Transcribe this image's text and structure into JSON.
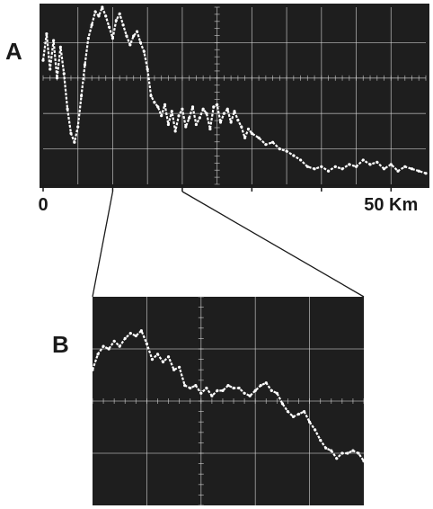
{
  "panels": {
    "a_label": "A",
    "b_label": "B"
  },
  "colors": {
    "screen": "#1e1e1e",
    "grid": "#d8d8d8",
    "trace": "#ffffff",
    "ink": "#1a1a1a",
    "paper": "#ffffff"
  },
  "chart_data": [
    {
      "type": "line",
      "title": "",
      "xlabel": "",
      "ylabel": "",
      "xlim": [
        0,
        55
      ],
      "ylim": [
        0,
        8
      ],
      "x_tick_values": [
        0,
        10,
        20,
        30,
        40,
        50
      ],
      "x_tick_labels": [
        "0",
        "",
        "",
        "",
        "",
        "50 Km"
      ],
      "grid": true,
      "series": [
        {
          "x": [
            0,
            0.5,
            1,
            1.5,
            2,
            2.5,
            3,
            3.5,
            4,
            4.5,
            5,
            5.5,
            6,
            6.5,
            7,
            7.5,
            8,
            8.5,
            9,
            9.5,
            10,
            10.5,
            11,
            11.5,
            12,
            12.5,
            13,
            13.5,
            14,
            14.5,
            15,
            15.5,
            16,
            16.5,
            17,
            17.5,
            18,
            18.5,
            19,
            19.5,
            20,
            20.5,
            21,
            21.5,
            22,
            22.5,
            23,
            23.5,
            24,
            24.5,
            25,
            25.5,
            26,
            26.5,
            27,
            27.5,
            28,
            28.5,
            29,
            29.5,
            30,
            31,
            32,
            33,
            34,
            35,
            36,
            37,
            38,
            39,
            40,
            41,
            42,
            43,
            44,
            45,
            46,
            47,
            48,
            49,
            50,
            51,
            52,
            53,
            54,
            55
          ],
          "y": [
            5.6,
            6.8,
            5.2,
            6.5,
            4.8,
            6.2,
            5.0,
            3.4,
            2.3,
            1.9,
            2.6,
            4.0,
            5.4,
            6.6,
            7.2,
            7.8,
            7.6,
            8.0,
            7.6,
            7.1,
            6.6,
            7.4,
            7.7,
            7.2,
            6.7,
            6.3,
            6.7,
            6.9,
            6.4,
            6.0,
            5.2,
            4.0,
            3.7,
            3.5,
            3.1,
            3.6,
            2.7,
            3.3,
            2.4,
            3.1,
            3.4,
            2.6,
            3.0,
            3.5,
            2.7,
            3.0,
            3.4,
            3.2,
            2.5,
            3.5,
            3.6,
            2.8,
            3.2,
            3.4,
            2.8,
            3.3,
            2.9,
            2.6,
            2.1,
            2.5,
            2.3,
            2.1,
            1.8,
            1.9,
            1.6,
            1.5,
            1.3,
            1.1,
            0.8,
            0.7,
            0.8,
            0.6,
            0.8,
            0.7,
            0.9,
            0.8,
            1.1,
            0.9,
            1.0,
            0.7,
            0.9,
            0.6,
            0.8,
            0.7,
            0.6,
            0.5
          ]
        }
      ]
    },
    {
      "type": "line",
      "title": "",
      "xlabel": "",
      "ylabel": "",
      "xlim": [
        10,
        20
      ],
      "ylim": [
        0,
        8
      ],
      "grid": true,
      "series": [
        {
          "x": [
            10,
            10.2,
            10.4,
            10.6,
            10.8,
            11.0,
            11.2,
            11.4,
            11.6,
            11.8,
            12.0,
            12.2,
            12.4,
            12.6,
            12.8,
            13.0,
            13.2,
            13.4,
            13.6,
            13.8,
            14.0,
            14.2,
            14.4,
            14.6,
            14.8,
            15.0,
            15.2,
            15.4,
            15.6,
            15.8,
            16.0,
            16.2,
            16.4,
            16.6,
            16.8,
            17.0,
            17.2,
            17.4,
            17.6,
            17.8,
            18.0,
            18.2,
            18.4,
            18.6,
            18.8,
            19.0,
            19.2,
            19.4,
            19.6,
            19.8,
            20.0
          ],
          "y": [
            5.2,
            5.8,
            6.1,
            6.0,
            6.3,
            6.1,
            6.4,
            6.6,
            6.5,
            6.7,
            6.2,
            5.6,
            5.8,
            5.5,
            5.7,
            5.2,
            5.3,
            4.6,
            4.5,
            4.6,
            4.3,
            4.5,
            4.2,
            4.4,
            4.4,
            4.6,
            4.5,
            4.5,
            4.3,
            4.2,
            4.4,
            4.6,
            4.7,
            4.4,
            4.3,
            3.9,
            3.6,
            3.4,
            3.5,
            3.6,
            3.2,
            2.9,
            2.5,
            2.2,
            2.1,
            1.8,
            2.0,
            2.0,
            2.1,
            2.0,
            1.7
          ]
        }
      ]
    }
  ]
}
